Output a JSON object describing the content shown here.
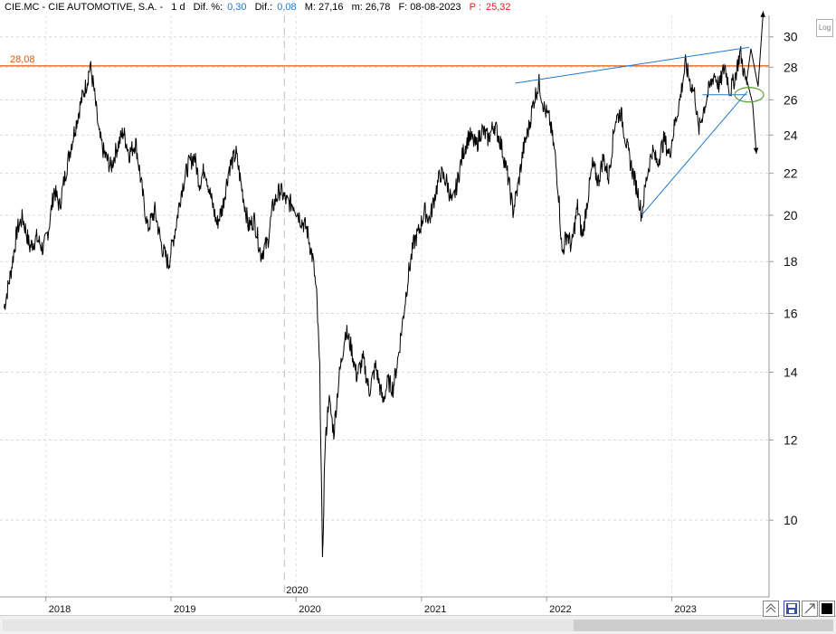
{
  "header": {
    "symbol": "CIE.MC - CIE AUTOMOTIVE, S.A. -",
    "period": "1 d",
    "dif_pct_label": "Dif. %:",
    "dif_pct_value": "0,30",
    "dif_label": "Dif.:",
    "dif_value": "0,08",
    "max_label": "M: 27,16",
    "min_label": "m: 26,78",
    "date_label": "F: 08-08-2023",
    "p_label": "P :",
    "p_value": "25,32"
  },
  "log_button": "Log",
  "chart_data": {
    "type": "line",
    "scale": "log",
    "ylim": [
      8.4,
      31.5
    ],
    "y_ticks": [
      10,
      12,
      14,
      16,
      18,
      20,
      22,
      24,
      26,
      28,
      30
    ],
    "x_ticks": [
      "2018",
      "2019",
      "2020",
      "2021",
      "2022",
      "2023"
    ],
    "x_tick_dates": [
      "2018-01-01",
      "2019-01-01",
      "2020-01-01",
      "2021-01-01",
      "2022-01-01",
      "2023-01-01"
    ],
    "marker_label": "2020",
    "marker_date": "2020-01-01",
    "horizontal_line": {
      "label": "28,08",
      "value": 28.08,
      "color": "#e05a00"
    },
    "price_color": "#000000",
    "trendline_color": "#1f78d1",
    "series": [
      {
        "points": [
          [
            "2017-09-01",
            16.2
          ],
          [
            "2017-09-20",
            17.5
          ],
          [
            "2017-10-10",
            19.4
          ],
          [
            "2017-10-25",
            19.9
          ],
          [
            "2017-11-15",
            18.6
          ],
          [
            "2017-12-05",
            19.0
          ],
          [
            "2017-12-25",
            18.5
          ],
          [
            "2018-01-10",
            19.5
          ],
          [
            "2018-01-25",
            21.2
          ],
          [
            "2018-02-10",
            20.4
          ],
          [
            "2018-02-25",
            21.8
          ],
          [
            "2018-03-15",
            23.4
          ],
          [
            "2018-04-01",
            24.8
          ],
          [
            "2018-04-15",
            26.0
          ],
          [
            "2018-05-01",
            27.1
          ],
          [
            "2018-05-10",
            28.1
          ],
          [
            "2018-05-20",
            26.8
          ],
          [
            "2018-06-05",
            24.0
          ],
          [
            "2018-06-20",
            23.0
          ],
          [
            "2018-07-10",
            22.3
          ],
          [
            "2018-07-25",
            23.2
          ],
          [
            "2018-08-15",
            24.2
          ],
          [
            "2018-09-01",
            23.0
          ],
          [
            "2018-09-20",
            23.6
          ],
          [
            "2018-10-10",
            21.0
          ],
          [
            "2018-10-25",
            19.4
          ],
          [
            "2018-11-15",
            20.2
          ],
          [
            "2018-12-05",
            18.6
          ],
          [
            "2018-12-25",
            17.9
          ],
          [
            "2019-01-15",
            19.5
          ],
          [
            "2019-02-01",
            21.2
          ],
          [
            "2019-02-20",
            22.4
          ],
          [
            "2019-03-10",
            22.9
          ],
          [
            "2019-03-25",
            21.5
          ],
          [
            "2019-04-10",
            22.3
          ],
          [
            "2019-04-25",
            21.0
          ],
          [
            "2019-05-15",
            19.6
          ],
          [
            "2019-06-01",
            20.4
          ],
          [
            "2019-06-20",
            22.3
          ],
          [
            "2019-07-10",
            23.0
          ],
          [
            "2019-07-25",
            21.4
          ],
          [
            "2019-08-15",
            19.5
          ],
          [
            "2019-09-01",
            19.8
          ],
          [
            "2019-09-20",
            18.3
          ],
          [
            "2019-10-10",
            18.8
          ],
          [
            "2019-10-25",
            20.4
          ],
          [
            "2019-11-15",
            21.2
          ],
          [
            "2019-12-05",
            20.6
          ],
          [
            "2019-12-25",
            20.5
          ],
          [
            "2020-01-15",
            19.8
          ],
          [
            "2020-02-01",
            19.4
          ],
          [
            "2020-02-20",
            18.0
          ],
          [
            "2020-03-01",
            16.6
          ],
          [
            "2020-03-10",
            14.0
          ],
          [
            "2020-03-18",
            9.0
          ],
          [
            "2020-03-25",
            11.7
          ],
          [
            "2020-04-05",
            13.2
          ],
          [
            "2020-04-20",
            12.2
          ],
          [
            "2020-05-05",
            13.8
          ],
          [
            "2020-05-25",
            15.4
          ],
          [
            "2020-06-10",
            14.8
          ],
          [
            "2020-06-25",
            13.9
          ],
          [
            "2020-07-15",
            14.4
          ],
          [
            "2020-08-01",
            13.4
          ],
          [
            "2020-08-20",
            14.2
          ],
          [
            "2020-09-10",
            13.1
          ],
          [
            "2020-09-25",
            13.7
          ],
          [
            "2020-10-10",
            13.5
          ],
          [
            "2020-10-25",
            14.5
          ],
          [
            "2020-11-10",
            16.0
          ],
          [
            "2020-11-25",
            17.6
          ],
          [
            "2020-12-10",
            18.8
          ],
          [
            "2020-12-25",
            19.3
          ],
          [
            "2021-01-10",
            20.2
          ],
          [
            "2021-01-25",
            19.8
          ],
          [
            "2021-02-10",
            21.0
          ],
          [
            "2021-02-25",
            22.0
          ],
          [
            "2021-03-15",
            21.6
          ],
          [
            "2021-04-01",
            20.5
          ],
          [
            "2021-04-15",
            21.5
          ],
          [
            "2021-05-01",
            23.0
          ],
          [
            "2021-05-20",
            24.0
          ],
          [
            "2021-06-10",
            23.4
          ],
          [
            "2021-06-25",
            24.3
          ],
          [
            "2021-07-15",
            23.8
          ],
          [
            "2021-08-01",
            24.6
          ],
          [
            "2021-08-20",
            23.6
          ],
          [
            "2021-09-10",
            21.8
          ],
          [
            "2021-09-25",
            20.2
          ],
          [
            "2021-10-10",
            21.4
          ],
          [
            "2021-10-25",
            23.2
          ],
          [
            "2021-11-10",
            24.4
          ],
          [
            "2021-11-25",
            26.0
          ],
          [
            "2021-12-10",
            27.0
          ],
          [
            "2021-12-25",
            25.5
          ],
          [
            "2022-01-10",
            24.8
          ],
          [
            "2022-01-25",
            23.0
          ],
          [
            "2022-02-05",
            21.0
          ],
          [
            "2022-02-15",
            18.3
          ],
          [
            "2022-03-01",
            19.2
          ],
          [
            "2022-03-15",
            18.6
          ],
          [
            "2022-04-01",
            20.4
          ],
          [
            "2022-04-15",
            19.0
          ],
          [
            "2022-05-01",
            20.8
          ],
          [
            "2022-05-15",
            22.4
          ],
          [
            "2022-06-01",
            21.6
          ],
          [
            "2022-06-15",
            22.8
          ],
          [
            "2022-07-01",
            21.8
          ],
          [
            "2022-07-20",
            24.8
          ],
          [
            "2022-08-05",
            25.3
          ],
          [
            "2022-08-25",
            23.2
          ],
          [
            "2022-09-10",
            22.0
          ],
          [
            "2022-09-25",
            21.0
          ],
          [
            "2022-10-05",
            20.0
          ],
          [
            "2022-10-20",
            21.8
          ],
          [
            "2022-11-05",
            23.2
          ],
          [
            "2022-11-20",
            22.5
          ],
          [
            "2022-12-10",
            23.8
          ],
          [
            "2022-12-25",
            22.9
          ],
          [
            "2023-01-10",
            24.6
          ],
          [
            "2023-01-25",
            26.0
          ],
          [
            "2023-02-10",
            28.2
          ],
          [
            "2023-02-25",
            27.0
          ],
          [
            "2023-03-10",
            26.3
          ],
          [
            "2023-03-20",
            24.2
          ],
          [
            "2023-04-05",
            25.5
          ],
          [
            "2023-04-20",
            26.6
          ],
          [
            "2023-05-05",
            27.6
          ],
          [
            "2023-05-20",
            26.8
          ],
          [
            "2023-06-05",
            28.1
          ],
          [
            "2023-06-20",
            26.5
          ],
          [
            "2023-07-05",
            27.4
          ],
          [
            "2023-07-20",
            29.0
          ],
          [
            "2023-08-01",
            27.5
          ],
          [
            "2023-08-08",
            26.9
          ]
        ]
      }
    ],
    "trendlines": [
      {
        "from": [
          "2021-10-01",
          27.0
        ],
        "to": [
          "2023-08-15",
          29.3
        ]
      },
      {
        "from": [
          "2022-10-05",
          20.0
        ],
        "to": [
          "2023-08-10",
          26.5
        ]
      },
      {
        "from": [
          "2023-04-01",
          26.3
        ],
        "to": [
          "2023-08-08",
          26.3
        ]
      }
    ],
    "projection_arrows": [
      {
        "points": [
          [
            "2023-08-08",
            27.2
          ],
          [
            "2023-08-20",
            29.2
          ],
          [
            "2023-09-10",
            26.8
          ],
          [
            "2023-09-25",
            31.8
          ]
        ]
      },
      {
        "points": [
          [
            "2023-08-08",
            27.2
          ],
          [
            "2023-08-25",
            25.8
          ],
          [
            "2023-09-05",
            23.0
          ]
        ]
      }
    ],
    "ellipse": {
      "center": [
        "2023-08-15",
        26.3
      ],
      "color": "#5aa02c"
    }
  }
}
